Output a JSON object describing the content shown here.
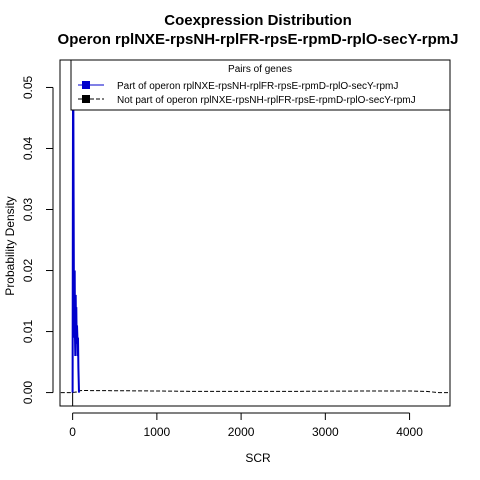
{
  "chart_data": {
    "type": "line",
    "title": "Coexpression Distribution",
    "subtitle": "Operon rplNXE-rpsNH-rplFR-rpsE-rpmD-rplO-secY-rpmJ",
    "xlabel": "SCR",
    "ylabel": "Probability Density",
    "xlim": [
      -150,
      4480
    ],
    "ylim": [
      -0.0022,
      0.0545
    ],
    "x_ticks": [
      0,
      1000,
      2000,
      3000,
      4000
    ],
    "x_tick_labels": [
      "0",
      "1000",
      "2000",
      "3000",
      "4000"
    ],
    "y_ticks": [
      0.0,
      0.01,
      0.02,
      0.03,
      0.04,
      0.05
    ],
    "y_tick_labels": [
      "0.00",
      "0.01",
      "0.02",
      "0.03",
      "0.04",
      "0.05"
    ],
    "grid": false,
    "legend": {
      "title": "Pairs of genes",
      "placement": "top",
      "entries": [
        "Part of operon rplNXE-rpsNH-rplFR-rpsE-rpmD-rplO-secY-rpmJ",
        "Not part of operon rplNXE-rpsNH-rplFR-rpsE-rpmD-rplO-secY-rpmJ"
      ]
    },
    "series": [
      {
        "name": "Part of operon rplNXE-rpsNH-rplFR-rpsE-rpmD-rplO-secY-rpmJ",
        "color": "#0000cc",
        "style": "solid",
        "x": [
          0,
          4,
          8,
          12,
          16,
          20,
          24,
          28,
          32,
          36,
          40,
          44,
          48,
          52,
          56,
          60,
          64,
          68,
          72,
          76
        ],
        "y": [
          0.0,
          0.046,
          0.05,
          0.032,
          0.012,
          0.009,
          0.02,
          0.009,
          0.006,
          0.016,
          0.01,
          0.014,
          0.008,
          0.011,
          0.009,
          0.006,
          0.009,
          0.004,
          0.002,
          0.0
        ]
      },
      {
        "name": "Not part of operon rplNXE-rpsNH-rplFR-rpsE-rpmD-rplO-secY-rpmJ",
        "color": "#000000",
        "style": "dashed",
        "x": [
          -140,
          0,
          40,
          60,
          80,
          120,
          200,
          500,
          1000,
          1500,
          2000,
          2500,
          3000,
          3500,
          4000,
          4200,
          4350,
          4480
        ],
        "y": [
          0.0,
          0.0,
          0.0001,
          5e-05,
          0.0003,
          0.00035,
          0.00032,
          0.0003,
          0.00025,
          0.0002,
          0.0002,
          0.0002,
          0.00022,
          0.00025,
          0.00025,
          0.0002,
          0.0,
          0.0
        ]
      }
    ]
  }
}
